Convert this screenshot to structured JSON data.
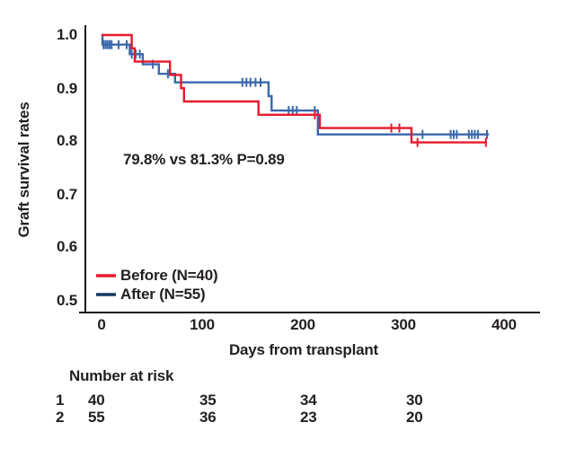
{
  "figure": {
    "background": "#ffffff",
    "axis_color": "#1a1a1a",
    "text_color": "#231f20"
  },
  "chart_data": {
    "type": "line",
    "subtype": "kaplan-meier-step-curves",
    "title": "",
    "xlabel": "Days from transplant",
    "ylabel": "Graft survival rates",
    "xlim": [
      0,
      435
    ],
    "ylim": [
      0.48,
      1.02
    ],
    "grid": false,
    "xticks": [
      "0",
      "100",
      "200",
      "300",
      "400"
    ],
    "xtick_values": [
      0,
      100,
      200,
      300,
      400
    ],
    "yticks": [
      "1.0",
      "0.9",
      "0.8",
      "0.7",
      "0.6",
      "0.5"
    ],
    "ytick_values": [
      1.0,
      0.9,
      0.8,
      0.7,
      0.6,
      0.5
    ],
    "annotation": "79.8% vs 81.3% P=0.89",
    "legend": {
      "position": "lower-left",
      "entries": [
        {
          "label": "Before (N=40)",
          "color": "#e8192c"
        },
        {
          "label": "After (N=55)",
          "color": "#17375e"
        }
      ]
    },
    "series": [
      {
        "id": "after",
        "name": "After (N=55)",
        "color": "#3a67ae",
        "final_survival_pct": 81.3,
        "steps": [
          [
            0,
            1.0
          ],
          [
            1,
            0.982
          ],
          [
            28,
            0.964
          ],
          [
            41,
            0.945
          ],
          [
            57,
            0.927
          ],
          [
            73,
            0.911
          ],
          [
            166,
            0.885
          ],
          [
            169,
            0.858
          ],
          [
            215,
            0.813
          ],
          [
            385,
            0.813
          ]
        ],
        "censors": [
          [
            2,
            0.982
          ],
          [
            4,
            0.982
          ],
          [
            6,
            0.982
          ],
          [
            8,
            0.982
          ],
          [
            10,
            0.982
          ],
          [
            17,
            0.982
          ],
          [
            25,
            0.982
          ],
          [
            30,
            0.964
          ],
          [
            34,
            0.964
          ],
          [
            38,
            0.964
          ],
          [
            51,
            0.945
          ],
          [
            66,
            0.927
          ],
          [
            140,
            0.911
          ],
          [
            144,
            0.911
          ],
          [
            148,
            0.911
          ],
          [
            153,
            0.911
          ],
          [
            158,
            0.911
          ],
          [
            186,
            0.858
          ],
          [
            190,
            0.858
          ],
          [
            194,
            0.858
          ],
          [
            212,
            0.858
          ],
          [
            319,
            0.813
          ],
          [
            347,
            0.813
          ],
          [
            350,
            0.813
          ],
          [
            353,
            0.813
          ],
          [
            365,
            0.813
          ],
          [
            368,
            0.813
          ],
          [
            371,
            0.813
          ],
          [
            374,
            0.813
          ],
          [
            383,
            0.813
          ]
        ]
      },
      {
        "id": "before",
        "name": "Before (N=40)",
        "color": "#e8192c",
        "final_survival_pct": 79.8,
        "steps": [
          [
            0,
            1.0
          ],
          [
            30,
            0.975
          ],
          [
            33,
            0.95
          ],
          [
            68,
            0.925
          ],
          [
            79,
            0.9
          ],
          [
            82,
            0.875
          ],
          [
            156,
            0.85
          ],
          [
            217,
            0.825
          ],
          [
            308,
            0.798
          ],
          [
            383,
            0.798
          ]
        ],
        "censors": [
          [
            212,
            0.85
          ],
          [
            288,
            0.825
          ],
          [
            296,
            0.825
          ],
          [
            314,
            0.798
          ],
          [
            382,
            0.798
          ]
        ]
      }
    ],
    "risk_table": {
      "title": "Number at risk",
      "timepoints": [
        0,
        100,
        200,
        300
      ],
      "rows": [
        {
          "label": "1",
          "counts": [
            "40",
            "35",
            "34",
            "30"
          ]
        },
        {
          "label": "2",
          "counts": [
            "55",
            "36",
            "23",
            "20"
          ]
        }
      ]
    }
  }
}
